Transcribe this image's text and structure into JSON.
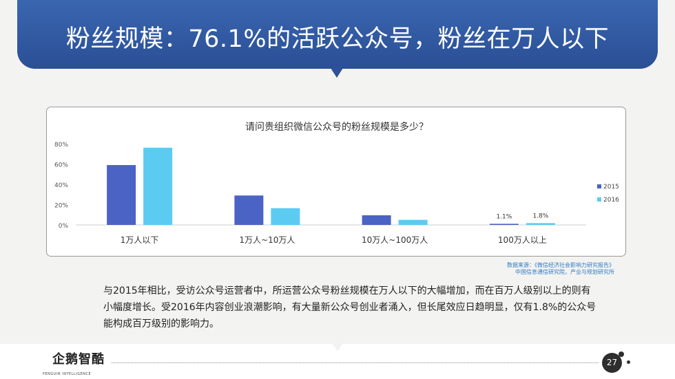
{
  "slide": {
    "title": "粉丝规模：76.1%的活跃公众号，粉丝在万人以下",
    "source_line1": "数据来源：《微信经济社会影响力研究报告》",
    "source_line2": "中国信息通信研究院，产业与规划研究所",
    "description": "与2015年相比，受访公众号运营者中，所运营公众号粉丝规模在万人以下的大幅增加，而在百万人级别以上的则有小幅度增长。受2016年内容创业浪潮影响，有大量新公众号创业者涌入，但长尾效应日趋明显，仅有1.8%的公众号能构成百万级别的影响力。",
    "page_number": "27",
    "logo_text": "企鹅智酷",
    "logo_subtext": "PENGUIN INTELLIGENCE"
  },
  "chart_data": {
    "type": "bar",
    "title": "请问贵组织微信公众号的粉丝规模是多少？",
    "categories": [
      "1万人以下",
      "1万人~10万人",
      "10万人~100万人",
      "100万人以上"
    ],
    "series": [
      {
        "name": "2015",
        "values": [
          59,
          29,
          9.5,
          1.1
        ],
        "color": "#4b63c4"
      },
      {
        "name": "2016",
        "values": [
          76.1,
          16.5,
          5,
          1.8
        ],
        "color": "#5ccbf2"
      }
    ],
    "data_labels": [
      {
        "category_index": 3,
        "series_index": 0,
        "text": "1.1%"
      },
      {
        "category_index": 3,
        "series_index": 1,
        "text": "1.8%"
      }
    ],
    "ylim": [
      0,
      80
    ],
    "yticks": [
      0,
      20,
      40,
      60,
      80
    ],
    "ytick_labels": [
      "0%",
      "20%",
      "40%",
      "60%",
      "80%"
    ],
    "grid": false,
    "legend_position": "right"
  }
}
